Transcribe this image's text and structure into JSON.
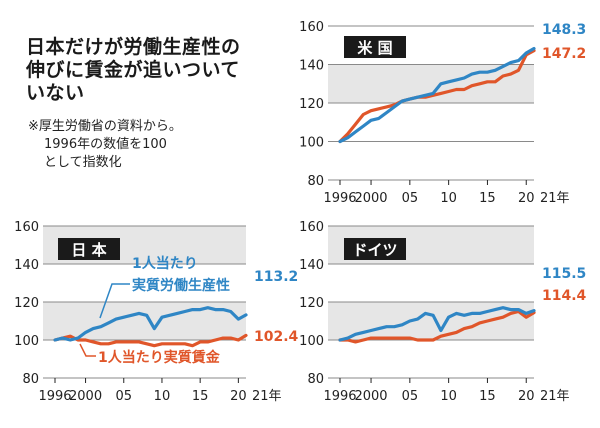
{
  "headline": {
    "lines": [
      "日本だけが労働生産性の",
      "伸びに賃金が追いついて",
      "いない"
    ]
  },
  "note": {
    "lines": [
      "※厚生労働省の資料から。",
      "1996年の数値を100",
      "として指数化"
    ]
  },
  "colors": {
    "productivity": "#2f86c5",
    "wage": "#e0562a",
    "band": "#e6e6e6",
    "grid": "#8a8a8a",
    "label_bg": "#1a1a1a"
  },
  "chart_data": [
    {
      "type": "line",
      "country": "米 国",
      "x": [
        1996,
        1997,
        1998,
        1999,
        2000,
        2001,
        2002,
        2003,
        2004,
        2005,
        2006,
        2007,
        2008,
        2009,
        2010,
        2011,
        2012,
        2013,
        2014,
        2015,
        2016,
        2017,
        2018,
        2019,
        2020,
        2021
      ],
      "series": [
        {
          "key": "productivity",
          "values": [
            100,
            102,
            105,
            108,
            111,
            112,
            115,
            118,
            121,
            122,
            123,
            124,
            125,
            130,
            131,
            132,
            133,
            135,
            136,
            136,
            137,
            139,
            141,
            142,
            146,
            148.3
          ]
        },
        {
          "key": "wage",
          "values": [
            100,
            104,
            109,
            114,
            116,
            117,
            118,
            119,
            121,
            122,
            123,
            123,
            124,
            125,
            126,
            127,
            127,
            129,
            130,
            131,
            131,
            134,
            135,
            137,
            145,
            147.2
          ]
        }
      ],
      "end_labels": [
        "148.3",
        "147.2"
      ],
      "ylim": [
        80,
        160
      ],
      "yticks": [
        "80",
        "100",
        "120",
        "140",
        "160"
      ],
      "bands": [
        [
          120,
          140
        ],
        [
          160,
          160
        ]
      ],
      "xticks": [
        {
          "x": 1996,
          "label": "1996"
        },
        {
          "x": 2000,
          "label": "2000"
        },
        {
          "x": 2005,
          "label": "05"
        },
        {
          "x": 2010,
          "label": "10"
        },
        {
          "x": 2015,
          "label": "15"
        },
        {
          "x": 2020,
          "label": "20"
        }
      ],
      "x_end_label": "21年"
    },
    {
      "type": "line",
      "country": "日 本",
      "x": [
        1996,
        1997,
        1998,
        1999,
        2000,
        2001,
        2002,
        2003,
        2004,
        2005,
        2006,
        2007,
        2008,
        2009,
        2010,
        2011,
        2012,
        2013,
        2014,
        2015,
        2016,
        2017,
        2018,
        2019,
        2020,
        2021
      ],
      "series": [
        {
          "key": "productivity",
          "values": [
            100,
            101,
            100,
            101,
            104,
            106,
            107,
            109,
            111,
            112,
            113,
            114,
            113,
            106,
            112,
            113,
            114,
            115,
            116,
            116,
            117,
            116,
            116,
            115,
            111,
            113.2
          ]
        },
        {
          "key": "wage",
          "values": [
            100,
            101,
            102,
            100,
            100,
            99,
            98,
            98,
            99,
            99,
            99,
            99,
            98,
            97,
            98,
            98,
            98,
            98,
            97,
            99,
            99,
            100,
            101,
            101,
            100,
            102.4
          ]
        }
      ],
      "end_labels": [
        "113.2",
        "102.4"
      ],
      "inline_labels": [
        "1人当たり",
        "実質労働生産性",
        "1人当たり実質賃金"
      ],
      "ylim": [
        80,
        160
      ],
      "yticks": [
        "80",
        "100",
        "120",
        "140",
        "160"
      ],
      "bands": [
        [
          100,
          120
        ],
        [
          140,
          160
        ]
      ],
      "xticks": [
        {
          "x": 1996,
          "label": "1996"
        },
        {
          "x": 2000,
          "label": "2000"
        },
        {
          "x": 2005,
          "label": "05"
        },
        {
          "x": 2010,
          "label": "10"
        },
        {
          "x": 2015,
          "label": "15"
        },
        {
          "x": 2020,
          "label": "20"
        }
      ],
      "x_end_label": "21年"
    },
    {
      "type": "line",
      "country": "ドイツ",
      "x": [
        1996,
        1997,
        1998,
        1999,
        2000,
        2001,
        2002,
        2003,
        2004,
        2005,
        2006,
        2007,
        2008,
        2009,
        2010,
        2011,
        2012,
        2013,
        2014,
        2015,
        2016,
        2017,
        2018,
        2019,
        2020,
        2021
      ],
      "series": [
        {
          "key": "productivity",
          "values": [
            100,
            101,
            103,
            104,
            105,
            106,
            107,
            107,
            108,
            110,
            111,
            114,
            113,
            105,
            112,
            114,
            113,
            114,
            114,
            115,
            116,
            117,
            116,
            116,
            114,
            115.5
          ]
        },
        {
          "key": "wage",
          "values": [
            100,
            100,
            99,
            100,
            101,
            101,
            101,
            101,
            101,
            101,
            100,
            100,
            100,
            102,
            103,
            104,
            106,
            107,
            109,
            110,
            111,
            112,
            114,
            115,
            112,
            114.4
          ]
        }
      ],
      "end_labels": [
        "115.5",
        "114.4"
      ],
      "ylim": [
        80,
        160
      ],
      "yticks": [
        "80",
        "100",
        "120",
        "140",
        "160"
      ],
      "bands": [
        [
          100,
          120
        ],
        [
          140,
          160
        ]
      ],
      "xticks": [
        {
          "x": 1996,
          "label": "1996"
        },
        {
          "x": 2000,
          "label": "2000"
        },
        {
          "x": 2005,
          "label": "05"
        },
        {
          "x": 2010,
          "label": "10"
        },
        {
          "x": 2015,
          "label": "15"
        },
        {
          "x": 2020,
          "label": "20"
        }
      ],
      "x_end_label": "21年"
    }
  ]
}
